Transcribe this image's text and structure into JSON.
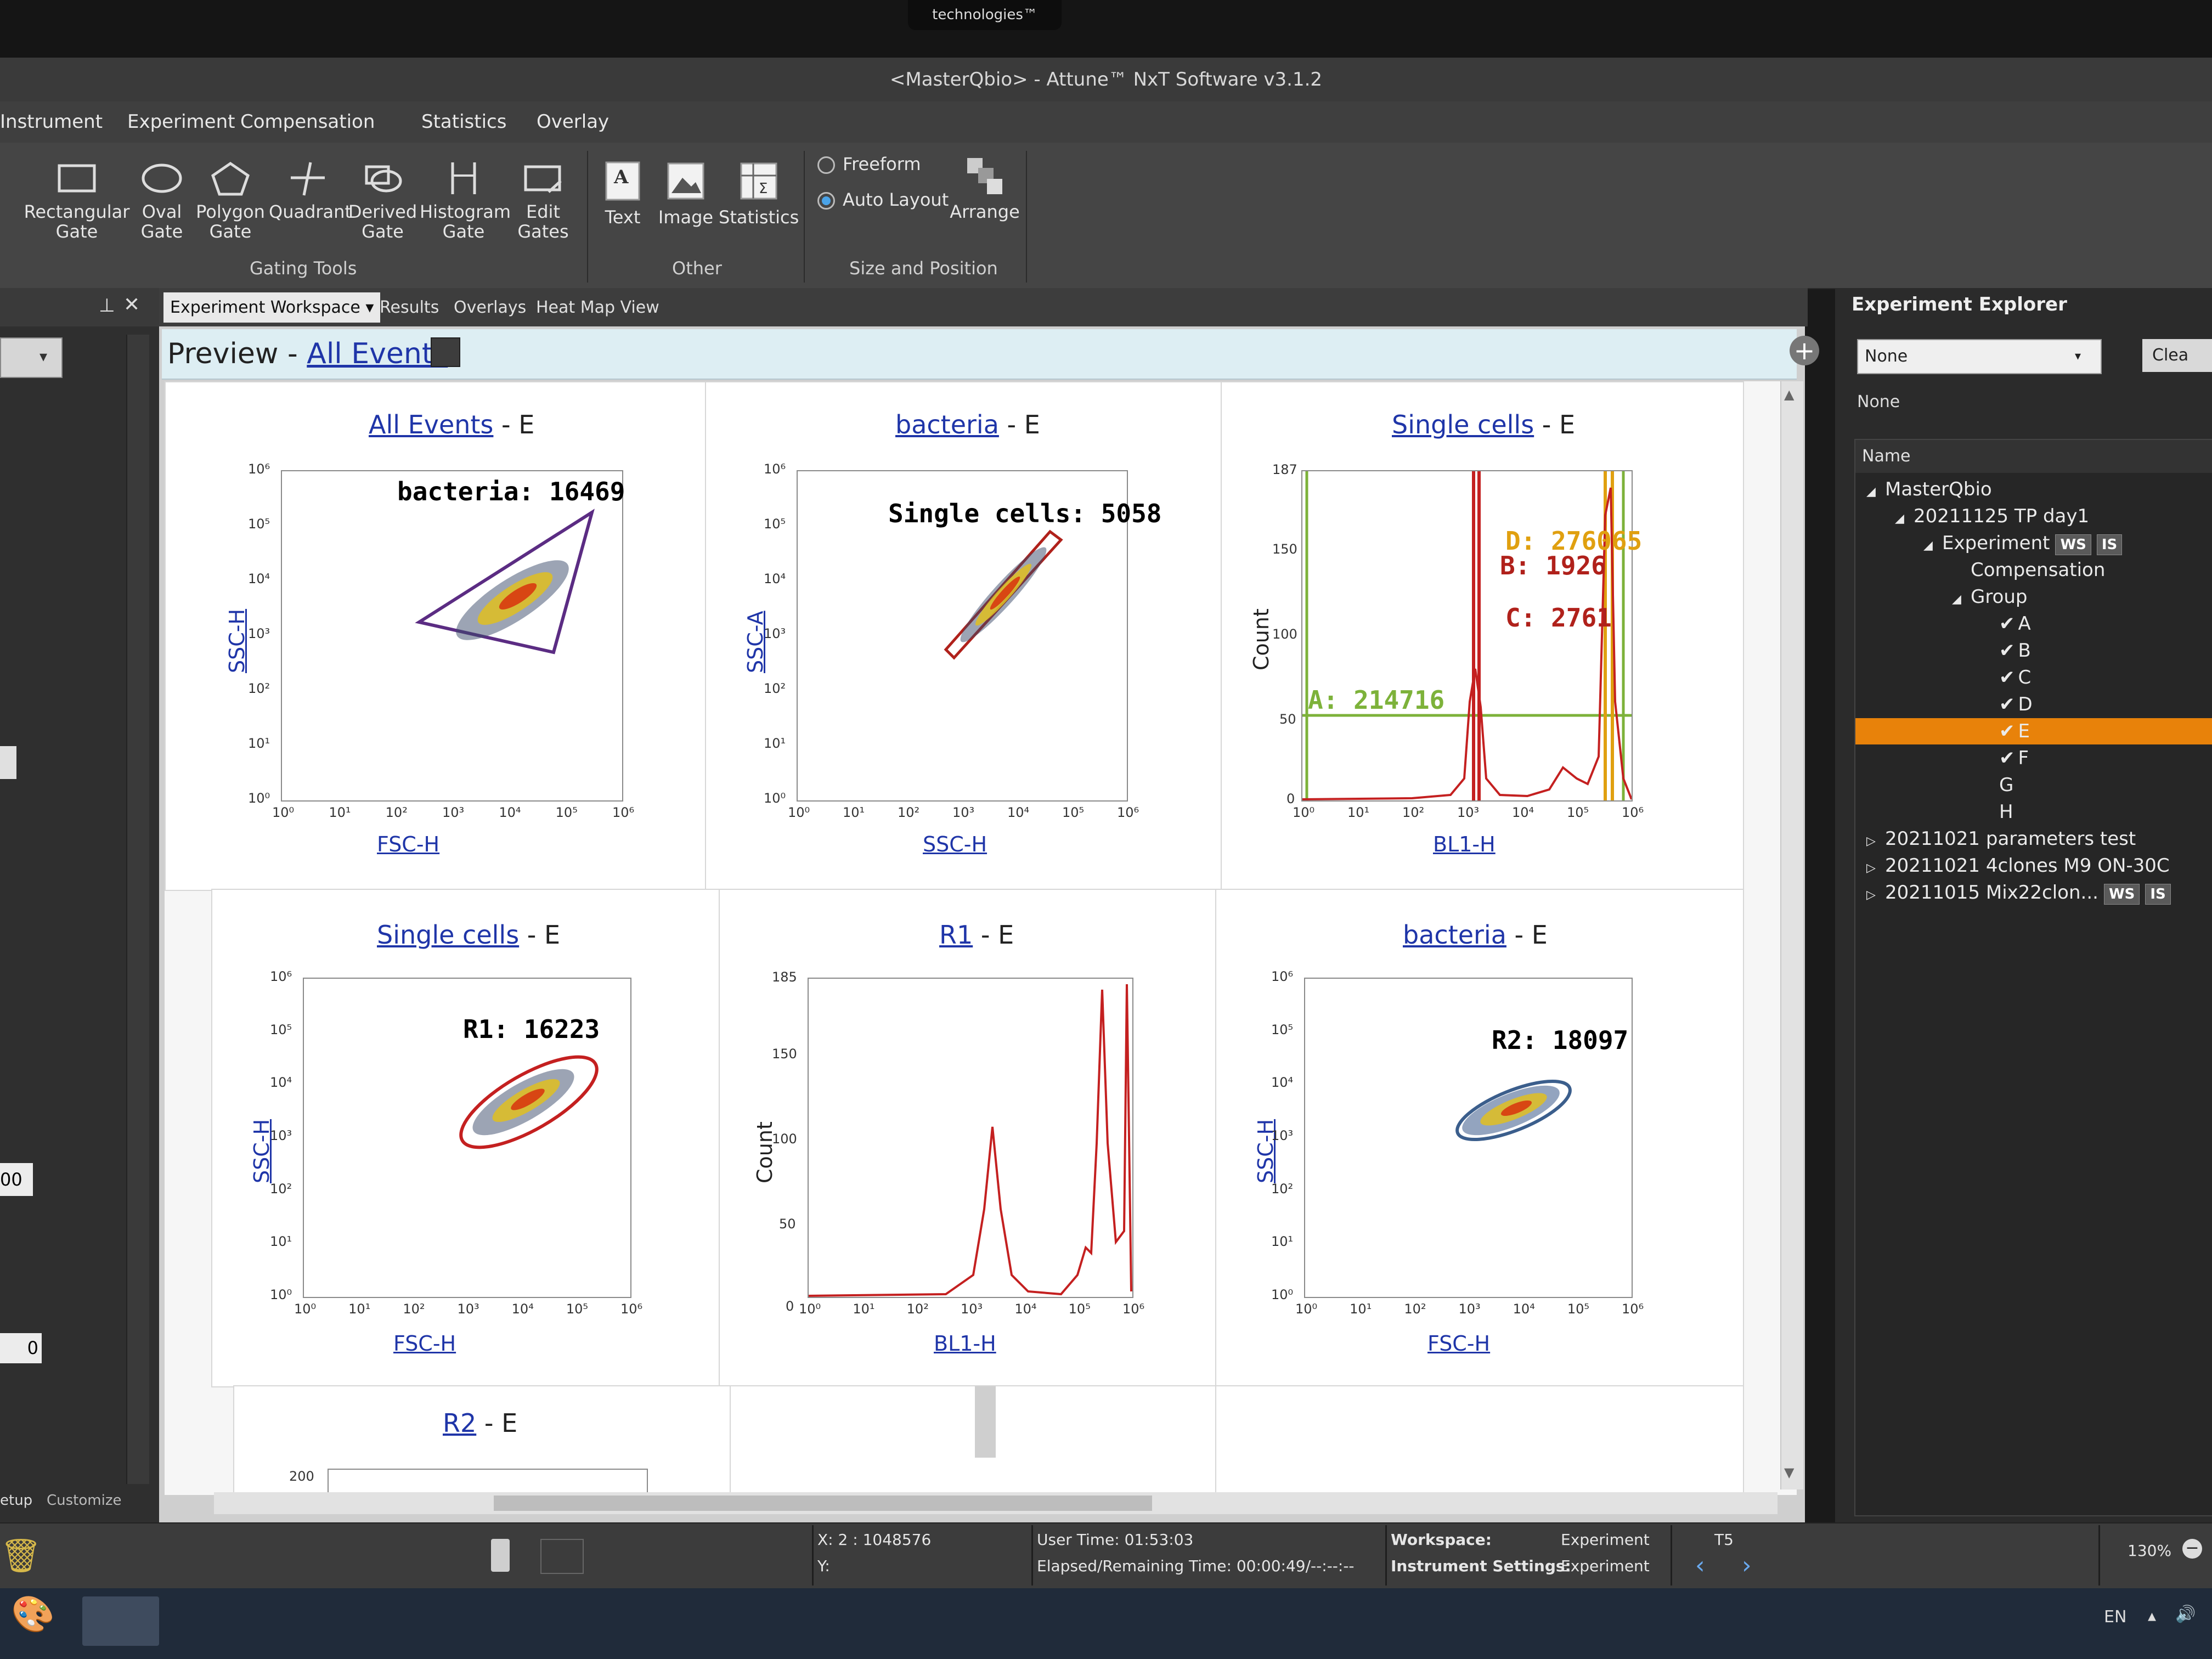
{
  "window": {
    "title": "<MasterQbio> - Attune™ NxT Software v3.1.2",
    "brand": "technologies™"
  },
  "menu": [
    "Instrument",
    "Experiment",
    "Compensation",
    "Statistics",
    "Overlay"
  ],
  "ribbon": {
    "gating_tools": [
      {
        "l1": "Rectangular",
        "l2": "Gate"
      },
      {
        "l1": "Oval",
        "l2": "Gate"
      },
      {
        "l1": "Polygon",
        "l2": "Gate"
      },
      {
        "l1": "Quadrant",
        "l2": ""
      },
      {
        "l1": "Derived",
        "l2": "Gate"
      },
      {
        "l1": "Histogram",
        "l2": "Gate"
      },
      {
        "l1": "Edit",
        "l2": "Gates"
      }
    ],
    "gating_label": "Gating Tools",
    "other": [
      "Text",
      "Image",
      "Statistics"
    ],
    "other_label": "Other",
    "freeform": "Freeform",
    "auto_layout": "Auto Layout",
    "arrange": "Arrange",
    "size_label": "Size and Position"
  },
  "tabs": [
    "Experiment Workspace",
    "Results",
    "Overlays",
    "Heat Map View"
  ],
  "preview": {
    "prefix": "Preview - ",
    "link": "All Events"
  },
  "plots": [
    {
      "title": "All Events",
      "suffix": " - E",
      "x": "FSC-H",
      "y": "SSC-H",
      "gate": "bacteria: 16469",
      "gate_color": "#5b2c83"
    },
    {
      "title": "bacteria",
      "suffix": " - E",
      "x": "SSC-H",
      "y": "SSC-A",
      "gate": "Single cells: 5058",
      "gate_color": "#b0211b"
    },
    {
      "title": "Single cells",
      "suffix": " - E",
      "x": "BL1-H",
      "y": "Count",
      "gates": [
        "D: 276065",
        "B: 1926",
        "C: 2761",
        "A: 214716"
      ],
      "ymax": "187"
    },
    {
      "title": "Single cells",
      "suffix": " - E",
      "x": "FSC-H",
      "y": "SSC-H",
      "gate": "R1: 16223",
      "gate_color": "#c42020"
    },
    {
      "title": "R1",
      "suffix": " - E",
      "x": "BL1-H",
      "y": "Count",
      "ymax": "185"
    },
    {
      "title": "bacteria",
      "suffix": " - E",
      "x": "FSC-H",
      "y": "SSC-H",
      "gate": "R2: 18097",
      "gate_color": "#3b5e8c"
    },
    {
      "title": "R2",
      "suffix": " - E",
      "ymax": "200"
    }
  ],
  "hist_ticks_count187": [
    "187",
    "150",
    "100",
    "50",
    "0"
  ],
  "hist_ticks_count185": [
    "185",
    "150",
    "100",
    "50",
    "0"
  ],
  "log_ticks": [
    "10⁰",
    "10¹",
    "10²",
    "10³",
    "10⁴",
    "10⁵",
    "10⁶"
  ],
  "explorer": {
    "title": "Experiment Explorer",
    "select": "None",
    "clear": "Clea",
    "none_label": "None",
    "col": "Name",
    "items": [
      {
        "label": "MasterQbio",
        "indent": 0,
        "arrow": "◢"
      },
      {
        "label": "20211125 TP day1",
        "indent": 1,
        "arrow": "◢"
      },
      {
        "label": "Experiment",
        "indent": 2,
        "arrow": "◢",
        "badges": [
          "WS",
          "IS"
        ]
      },
      {
        "label": "Compensation",
        "indent": 3,
        "arrow": ""
      },
      {
        "label": "Group",
        "indent": 3,
        "arrow": "◢"
      },
      {
        "label": "A",
        "indent": 4,
        "check": true
      },
      {
        "label": "B",
        "indent": 4,
        "check": true
      },
      {
        "label": "C",
        "indent": 4,
        "check": true
      },
      {
        "label": "D",
        "indent": 4,
        "check": true
      },
      {
        "label": "E",
        "indent": 4,
        "check": true,
        "selected": true
      },
      {
        "label": "F",
        "indent": 4,
        "check": true
      },
      {
        "label": "G",
        "indent": 4
      },
      {
        "label": "H",
        "indent": 4
      },
      {
        "label": "20211021 parameters test",
        "indent": 0,
        "arrow": "▷"
      },
      {
        "label": "20211021 4clones M9 ON-30C",
        "indent": 0,
        "arrow": "▷"
      },
      {
        "label": "20211015 Mix22clon...",
        "indent": 0,
        "arrow": "▷",
        "badges": [
          "WS",
          "IS"
        ]
      }
    ]
  },
  "left_panel": {
    "value_a": "00",
    "value_b": "0",
    "setup": "etup",
    "customize": "Customize"
  },
  "status": {
    "xy_x": "X: 2 : 1048576",
    "xy_y": "Y:",
    "user_time": "User Time: 01:53:03",
    "elapsed": "Elapsed/Remaining Time:  00:00:49/--:--:--",
    "workspace_k": "Workspace:",
    "workspace_v": "Experiment",
    "inst_k": "Instrument Settings:",
    "inst_v": "Experiment",
    "t5": "T5",
    "zoom": "130%"
  },
  "taskbar": {
    "lang": "EN"
  }
}
